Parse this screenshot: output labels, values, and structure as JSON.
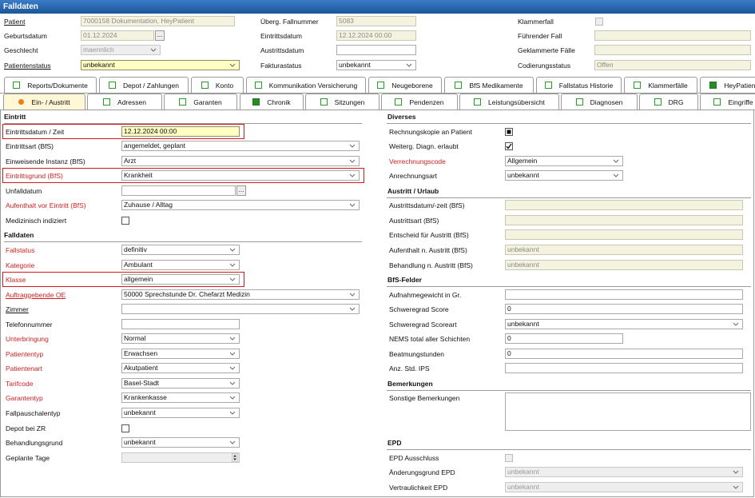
{
  "header": {
    "title": "Falldaten"
  },
  "top_fields": [
    [
      {
        "label": "Patient",
        "link": true,
        "value": "7000158 Dokumentation, HeyPatient",
        "kind": "input",
        "fill": "readonly"
      },
      {
        "label": "Überg. Fallnummer",
        "value": "5083",
        "kind": "input",
        "fill": "readonly"
      },
      {
        "label": "Klammerfall",
        "kind": "check",
        "fill": "disabled"
      }
    ],
    [
      {
        "label": "Geburtsdatum",
        "value": "01.12.2024",
        "kind": "date",
        "button": "...",
        "fill": "readonly"
      },
      {
        "label": "Eintrittsdatum",
        "value": "12.12.2024 00:00",
        "kind": "input",
        "fill": "readonly"
      },
      {
        "label": "Führender Fall",
        "kind": "input",
        "fill": "readonly"
      }
    ],
    [
      {
        "label": "Geschlecht",
        "value": "maennlich",
        "kind": "select",
        "fill": "disabled"
      },
      {
        "label": "Austrittsdatum",
        "kind": "input"
      },
      {
        "label": "Geklammerte Fälle",
        "kind": "input",
        "fill": "readonly"
      }
    ],
    [
      {
        "label": "Patientenstatus",
        "link": true,
        "value": "unbekannt",
        "kind": "select",
        "fill": "mandatory"
      },
      {
        "label": "Fakturastatus",
        "value": "unbekannt",
        "kind": "select"
      },
      {
        "label": "Codierungsstatus",
        "value": "Offen",
        "kind": "input",
        "fill": "readonly"
      }
    ]
  ],
  "tabs": [
    [
      {
        "label": "Reports/Dokumente",
        "icon": "open"
      },
      {
        "label": "Depot / Zahlungen",
        "icon": "open"
      },
      {
        "label": "Konto",
        "icon": "open"
      },
      {
        "label": "Kommunikation Versicherung",
        "icon": "open"
      },
      {
        "label": "Neugeborene",
        "icon": "open"
      },
      {
        "label": "BfS Medikamente",
        "icon": "open"
      },
      {
        "label": "Fallstatus Historie",
        "icon": "open"
      },
      {
        "label": "Klammerfälle",
        "icon": "open"
      },
      {
        "label": "HeyPatient",
        "icon": "filled"
      }
    ],
    [
      {
        "label": "Ein- / Austritt",
        "icon": "active"
      },
      {
        "label": "Adressen",
        "icon": "open"
      },
      {
        "label": "Garanten",
        "icon": "open"
      },
      {
        "label": "Chronik",
        "icon": "filled"
      },
      {
        "label": "Sitzungen",
        "icon": "open"
      },
      {
        "label": "Pendenzen",
        "icon": "open"
      },
      {
        "label": "Leistungsübersicht",
        "icon": "open"
      },
      {
        "label": "Diagnosen",
        "icon": "open"
      },
      {
        "label": "DRG",
        "icon": "open"
      },
      {
        "label": "Eingriffe",
        "icon": "open"
      }
    ]
  ],
  "left": [
    {
      "title": "Eintritt",
      "fields": [
        {
          "label": "Eintrittsdatum / Zeit",
          "value": "12.12.2024 00:00",
          "kind": "input",
          "fill": "mandatory",
          "highlighted": true
        },
        {
          "label": "Eintrittsart (BfS)",
          "value": "angemeldet, geplant",
          "kind": "select"
        },
        {
          "label": "Einweisende Instanz (BfS)",
          "value": "Arzt",
          "kind": "select"
        },
        {
          "label": "Eintrittsgrund (BfS)",
          "value": "Krankheit",
          "kind": "select",
          "required": true,
          "highlighted": true
        },
        {
          "label": "Unfalldatum",
          "kind": "date",
          "button": "..."
        },
        {
          "label": "Aufenthalt vor Eintritt (BfS)",
          "value": "Zuhause / Alltag",
          "kind": "select",
          "required": true
        },
        {
          "label": "Medizinisch indiziert",
          "kind": "check"
        }
      ]
    },
    {
      "title": "Falldaten",
      "fields": [
        {
          "label": "Fallstatus",
          "value": "definitiv",
          "kind": "select",
          "required": true
        },
        {
          "label": "Kategorie",
          "value": "Ambulant",
          "kind": "select",
          "required": true
        },
        {
          "label": "Klasse",
          "value": "allgemein",
          "kind": "select",
          "required": true,
          "highlighted": true
        },
        {
          "label": "Auftraggebende OE",
          "value": "50000 Sprechstunde Dr. Chefarzt Medizin",
          "kind": "select",
          "required": true,
          "link": true
        },
        {
          "label": "Zimmer",
          "kind": "select",
          "link": true
        },
        {
          "label": "Telefonnummer",
          "kind": "input"
        },
        {
          "label": "Unterbringung",
          "value": "Normal",
          "kind": "select",
          "required": true
        },
        {
          "label": "Patiententyp",
          "value": "Erwachsen",
          "kind": "select",
          "required": true
        },
        {
          "label": "Patientenart",
          "value": "Akutpatient",
          "kind": "select",
          "required": true
        },
        {
          "label": "Tarifcode",
          "value": "Basel-Stadt",
          "kind": "select",
          "required": true
        },
        {
          "label": "Garantentyp",
          "value": "Krankenkasse",
          "kind": "select",
          "required": true
        },
        {
          "label": "Fallpauschalentyp",
          "value": "unbekannt",
          "kind": "select"
        },
        {
          "label": "Depot bei ZR",
          "kind": "check"
        },
        {
          "label": "Behandlungsgrund",
          "value": "unbekannt",
          "kind": "select"
        },
        {
          "label": "Geplante Tage",
          "kind": "spin",
          "fill": "disabled"
        }
      ]
    }
  ],
  "right": [
    {
      "title": "Diverses",
      "fields": [
        {
          "label": "Rechnungskopie an Patient",
          "kind": "check",
          "state": "filled"
        },
        {
          "label": "Weiterg. Diagn. erlaubt",
          "kind": "check",
          "state": "checked"
        },
        {
          "label": "Verrechnungscode",
          "value": "Allgemein",
          "kind": "select",
          "required": true
        },
        {
          "label": "Anrechnungsart",
          "value": "unbekannt",
          "kind": "select"
        }
      ]
    },
    {
      "title": "Austritt / Urlaub",
      "fields": [
        {
          "label": "Austrittsdatum/-zeit (BfS)",
          "kind": "input",
          "fill": "readonly"
        },
        {
          "label": "Austrittsart (BfS)",
          "kind": "input",
          "fill": "readonly"
        },
        {
          "label": "Entscheid für Austritt (BfS)",
          "kind": "input",
          "fill": "readonly"
        },
        {
          "label": "Aufenthalt n. Austritt (BfS)",
          "value": "unbekannt",
          "kind": "input",
          "fill": "readonly"
        },
        {
          "label": "Behandlung n. Austritt (BfS)",
          "value": "unbekannt",
          "kind": "input",
          "fill": "readonly"
        }
      ]
    },
    {
      "title": "BfS-Felder",
      "fields": [
        {
          "label": "Aufnahmegewicht in Gr.",
          "kind": "input"
        },
        {
          "label": "Schweregrad Score",
          "value": "0",
          "kind": "input"
        },
        {
          "label": "Schweregrad Scoreart",
          "value": "unbekannt",
          "kind": "select"
        },
        {
          "label": "NEMS total aller Schichten",
          "value": "0",
          "kind": "input"
        },
        {
          "label": "Beatmungstunden",
          "value": "0",
          "kind": "input"
        },
        {
          "label": "Anz. Std. IPS",
          "kind": "input"
        }
      ]
    },
    {
      "title": "Bemerkungen",
      "fields": [
        {
          "label": "Sonstige Bemerkungen",
          "kind": "textarea"
        }
      ]
    },
    {
      "title": "EPD",
      "fields": [
        {
          "label": "EPD Ausschluss",
          "kind": "check",
          "fill": "disabled"
        },
        {
          "label": "Änderungsgrund EPD",
          "value": "unbekannt",
          "kind": "select",
          "fill": "disabled"
        },
        {
          "label": "Vertraulichkeit EPD",
          "value": "unbekannt",
          "kind": "select",
          "fill": "disabled"
        }
      ]
    }
  ]
}
